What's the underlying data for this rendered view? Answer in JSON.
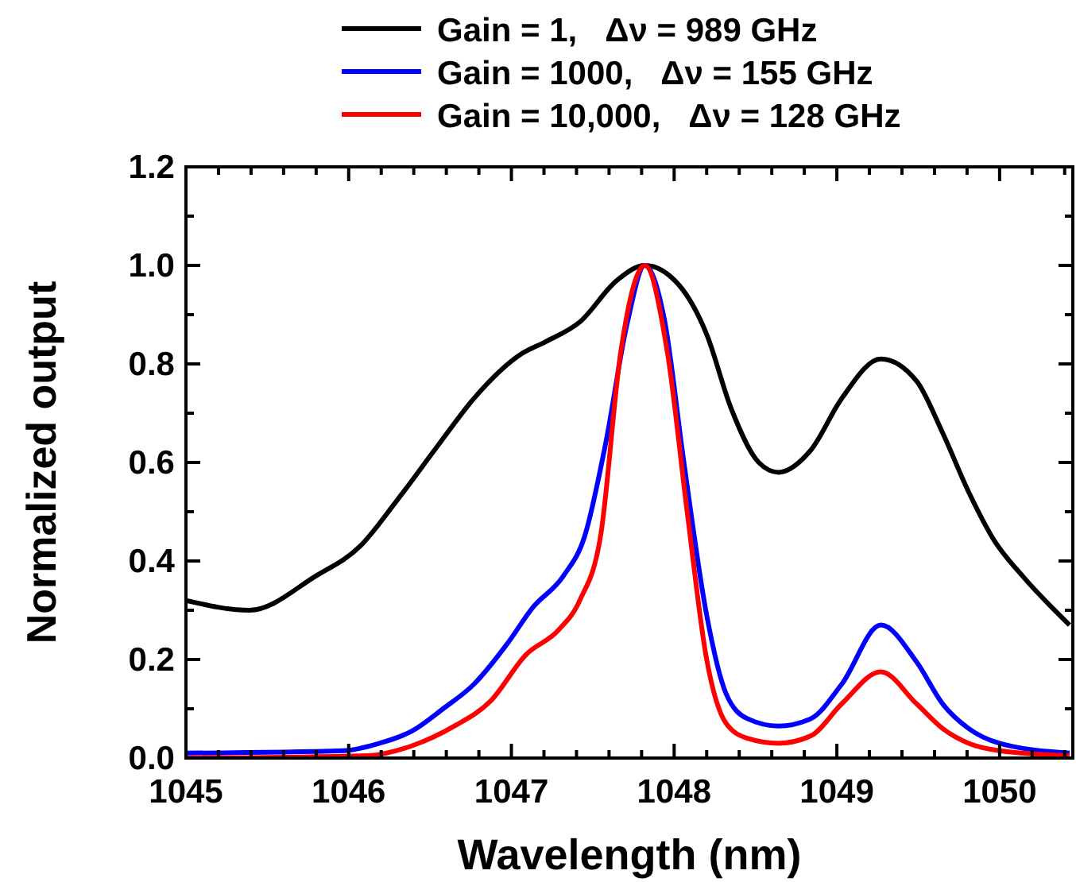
{
  "chart_data": {
    "type": "line",
    "xlabel": "Wavelength (nm)",
    "ylabel": "Normalized output",
    "legend": "top",
    "line_style": "solid",
    "marker": "none",
    "grid": false,
    "xlim": [
      1045,
      1050.45
    ],
    "ylim": [
      0,
      1.2
    ],
    "xticks": [
      1045,
      {
        "value": 1045.2,
        "label": null
      },
      {
        "value": 1045.4,
        "label": null
      },
      {
        "value": 1045.6,
        "label": null
      },
      {
        "value": 1045.8,
        "label": null
      },
      1046,
      {
        "value": 1046.2,
        "label": null
      },
      {
        "value": 1046.4,
        "label": null
      },
      {
        "value": 1046.6,
        "label": null
      },
      {
        "value": 1046.8,
        "label": null
      },
      1047,
      {
        "value": 1047.2,
        "label": null
      },
      {
        "value": 1047.4,
        "label": null
      },
      {
        "value": 1047.6,
        "label": null
      },
      {
        "value": 1047.8,
        "label": null
      },
      1048,
      {
        "value": 1048.2,
        "label": null
      },
      {
        "value": 1048.4,
        "label": null
      },
      {
        "value": 1048.6,
        "label": null
      },
      {
        "value": 1048.8,
        "label": null
      },
      1049,
      {
        "value": 1049.2,
        "label": null
      },
      {
        "value": 1049.4,
        "label": null
      },
      {
        "value": 1049.6,
        "label": null
      },
      {
        "value": 1049.8,
        "label": null
      },
      1050,
      {
        "value": 1050.2,
        "label": null
      },
      {
        "value": 1050.4,
        "label": null
      }
    ],
    "yticks": [
      {
        "value": 0,
        "label": "0.0"
      },
      {
        "value": 0.1,
        "label": null
      },
      0.2,
      {
        "value": 0.3,
        "label": null
      },
      0.4,
      {
        "value": 0.5,
        "label": null
      },
      0.6,
      {
        "value": 0.7,
        "label": null
      },
      0.8,
      {
        "value": 0.9,
        "label": null
      },
      {
        "value": 1,
        "label": "1.0"
      },
      {
        "value": 1.1,
        "label": null
      },
      1.2
    ],
    "series": [
      {
        "name": "Gain = 1,   Δν = 989 GHz",
        "color": "#000000",
        "x": [
          1045,
          1045.39,
          1045.8,
          1046.07,
          1046.29,
          1046.55,
          1046.77,
          1047.06,
          1047.21,
          1047.42,
          1047.65,
          1047.82,
          1048.03,
          1048.2,
          1048.35,
          1048.52,
          1048.64,
          1048.84,
          1049.03,
          1049.27,
          1049.49,
          1049.65,
          1049.81,
          1049.97,
          1050.14,
          1050.43
        ],
        "values": [
          0.32,
          0.3,
          0.37,
          0.43,
          0.52,
          0.635,
          0.73,
          0.82,
          0.845,
          0.885,
          0.97,
          1,
          0.96,
          0.86,
          0.71,
          0.6,
          0.58,
          0.625,
          0.73,
          0.81,
          0.765,
          0.66,
          0.54,
          0.44,
          0.37,
          0.27
        ]
      },
      {
        "name": "Gain = 1000,   Δν = 155 GHz",
        "color": "#0000ff",
        "x": [
          1045,
          1045.97,
          1046.19,
          1046.39,
          1046.58,
          1046.77,
          1046.97,
          1047.13,
          1047.32,
          1047.45,
          1047.58,
          1047.71,
          1047.82,
          1047.94,
          1048.06,
          1048.2,
          1048.32,
          1048.45,
          1048.64,
          1048.84,
          1049.03,
          1049.27,
          1049.49,
          1049.65,
          1049.81,
          1050,
          1050.43
        ],
        "values": [
          0.01,
          0.015,
          0.03,
          0.055,
          0.1,
          0.15,
          0.23,
          0.305,
          0.37,
          0.45,
          0.64,
          0.88,
          1,
          0.89,
          0.6,
          0.29,
          0.13,
          0.08,
          0.065,
          0.08,
          0.15,
          0.27,
          0.195,
          0.11,
          0.06,
          0.03,
          0.01
        ]
      },
      {
        "name": "Gain = 10,000,   Δν = 128 GHz",
        "color": "#ff0000",
        "x": [
          1045,
          1046.12,
          1046.39,
          1046.65,
          1046.87,
          1047.09,
          1047.29,
          1047.42,
          1047.55,
          1047.67,
          1047.82,
          1047.96,
          1048.08,
          1048.2,
          1048.32,
          1048.45,
          1048.64,
          1048.84,
          1049.03,
          1049.27,
          1049.49,
          1049.65,
          1049.81,
          1050,
          1050.43
        ],
        "values": [
          0,
          0.005,
          0.025,
          0.065,
          0.115,
          0.21,
          0.26,
          0.32,
          0.455,
          0.82,
          1,
          0.82,
          0.5,
          0.2,
          0.07,
          0.04,
          0.03,
          0.045,
          0.11,
          0.175,
          0.11,
          0.06,
          0.03,
          0.015,
          0.005
        ]
      }
    ]
  }
}
